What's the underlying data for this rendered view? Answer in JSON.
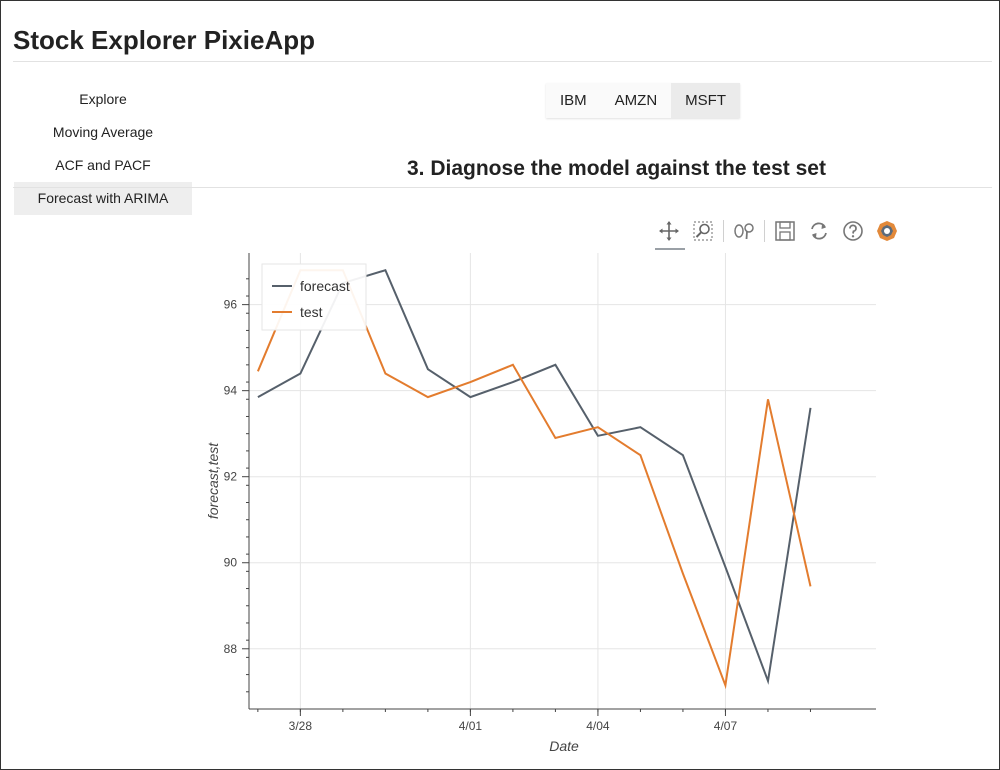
{
  "app": {
    "title": "Stock Explorer PixieApp"
  },
  "sidebar": {
    "items": [
      {
        "label": "Explore"
      },
      {
        "label": "Moving Average"
      },
      {
        "label": "ACF and PACF"
      },
      {
        "label": "Forecast with ARIMA",
        "active": true
      }
    ]
  },
  "tabs": [
    {
      "label": "IBM"
    },
    {
      "label": "AMZN"
    },
    {
      "label": "MSFT",
      "active": true
    }
  ],
  "section": {
    "title": "3. Diagnose the model against the test set"
  },
  "toolbar": {
    "tools": [
      {
        "icon": "pan-icon",
        "active": true
      },
      {
        "icon": "box-zoom-icon"
      },
      {
        "icon": "wheel-zoom-icon"
      },
      {
        "icon": "save-icon"
      },
      {
        "icon": "reset-icon"
      },
      {
        "icon": "help-icon"
      },
      {
        "icon": "bokeh-logo-icon"
      }
    ]
  },
  "colors": {
    "forecast": "#56606b",
    "test": "#e37c2e",
    "active_bg": "#eeeeee"
  },
  "chart_data": {
    "type": "line",
    "title": "",
    "xlabel": "Date",
    "ylabel": "forecast,test",
    "x": [
      "2017-03-27",
      "2017-03-28",
      "2017-03-29",
      "2017-03-30",
      "2017-03-31",
      "2017-04-01",
      "2017-04-02",
      "2017-04-03",
      "2017-04-04",
      "2017-04-05",
      "2017-04-06",
      "2017-04-07",
      "2017-04-08",
      "2017-04-09"
    ],
    "x_ticks": [
      {
        "date": "2017-03-28",
        "label": "3/28"
      },
      {
        "date": "2017-04-01",
        "label": "4/01"
      },
      {
        "date": "2017-04-04",
        "label": "4/04"
      },
      {
        "date": "2017-04-07",
        "label": "4/07"
      }
    ],
    "y_ticks": [
      88,
      90,
      92,
      94,
      96
    ],
    "ylim": [
      86.6,
      97.2
    ],
    "xlim": [
      "2017-03-26T19:00",
      "2017-04-10T13:00"
    ],
    "grid": true,
    "legend_placement": "top-left",
    "series": [
      {
        "name": "forecast",
        "values": [
          93.85,
          94.4,
          96.5,
          96.8,
          94.5,
          93.85,
          94.2,
          94.6,
          92.95,
          93.15,
          92.5,
          89.9,
          87.25,
          93.6
        ]
      },
      {
        "name": "test",
        "values": [
          94.45,
          96.8,
          96.8,
          94.4,
          93.85,
          94.2,
          94.6,
          92.9,
          93.15,
          92.5,
          89.75,
          87.15,
          93.8,
          89.45
        ]
      }
    ]
  }
}
